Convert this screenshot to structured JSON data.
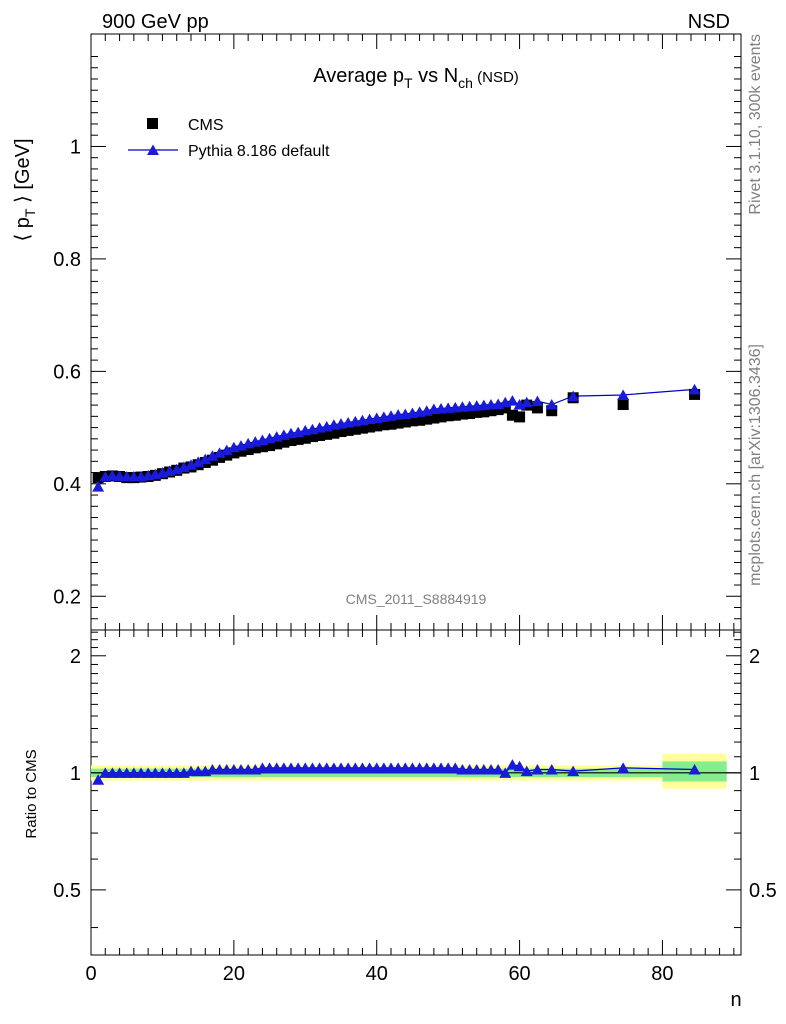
{
  "header": {
    "left": "900 GeV pp",
    "right": "NSD"
  },
  "title": {
    "main": "Average p",
    "sub1": "T",
    "mid": " vs N",
    "sub2": "ch",
    "tail": " (NSD)"
  },
  "side_labels": {
    "rivet": "Rivet 3.1.10,  300k events",
    "mcplots": "mcplots.cern.ch [arXiv:1306.3436]"
  },
  "watermark": "CMS_2011_S8884919",
  "ylabel": {
    "open": "⟨ p",
    "sub": "T",
    "close": " ⟩ [GeV]"
  },
  "xlabel": "n",
  "ratio_ylabel": "Ratio to CMS",
  "legend": {
    "data": "CMS",
    "mc": "Pythia 8.186 default"
  },
  "colors": {
    "data": "#000000",
    "mc": "#0000cc",
    "mc_marker": "#1a1adb",
    "band_inner": "#86ed8f",
    "band_outer": "#ffff9a",
    "ref_line": "#000000"
  },
  "chart_data": [
    {
      "type": "scatter",
      "panel": "main",
      "xlim": [
        0,
        91
      ],
      "ylim": [
        0.14,
        1.2
      ],
      "yticks": [
        "0.2",
        "0.4",
        "0.6",
        "0.8",
        "1"
      ],
      "series": [
        {
          "name": "CMS",
          "marker": "square",
          "x": [
            1,
            2,
            3,
            4,
            5,
            6,
            7,
            8,
            9,
            10,
            11,
            12,
            13,
            14,
            15,
            16,
            17,
            18,
            19,
            20,
            21,
            22,
            23,
            24,
            25,
            26,
            27,
            28,
            29,
            30,
            31,
            32,
            33,
            34,
            35,
            36,
            37,
            38,
            39,
            40,
            41,
            42,
            43,
            44,
            45,
            46,
            47,
            48,
            49,
            50,
            51,
            52,
            53,
            54,
            55,
            56,
            57,
            58,
            59,
            60,
            61,
            62.5,
            64.5,
            67.5,
            74.5,
            84.5
          ],
          "y": [
            0.411,
            0.413,
            0.414,
            0.413,
            0.411,
            0.411,
            0.412,
            0.413,
            0.415,
            0.418,
            0.421,
            0.424,
            0.428,
            0.43,
            0.434,
            0.438,
            0.442,
            0.447,
            0.451,
            0.455,
            0.458,
            0.461,
            0.464,
            0.466,
            0.468,
            0.471,
            0.474,
            0.477,
            0.479,
            0.481,
            0.484,
            0.486,
            0.488,
            0.49,
            0.493,
            0.495,
            0.497,
            0.499,
            0.501,
            0.503,
            0.505,
            0.506,
            0.508,
            0.51,
            0.512,
            0.513,
            0.515,
            0.517,
            0.519,
            0.521,
            0.522,
            0.524,
            0.525,
            0.527,
            0.528,
            0.53,
            0.532,
            0.535,
            0.522,
            0.519,
            0.54,
            0.535,
            0.53,
            0.553,
            0.541,
            0.559
          ]
        },
        {
          "name": "Pythia 8.186 default",
          "marker": "triangle",
          "x": [
            1,
            2,
            3,
            4,
            5,
            6,
            7,
            8,
            9,
            10,
            11,
            12,
            13,
            14,
            15,
            16,
            17,
            18,
            19,
            20,
            21,
            22,
            23,
            24,
            25,
            26,
            27,
            28,
            29,
            30,
            31,
            32,
            33,
            34,
            35,
            36,
            37,
            38,
            39,
            40,
            41,
            42,
            43,
            44,
            45,
            46,
            47,
            48,
            49,
            50,
            51,
            52,
            53,
            54,
            55,
            56,
            57,
            58,
            59,
            60,
            61,
            62.5,
            64.5,
            67.5,
            74.5,
            84.5
          ],
          "y": [
            0.395,
            0.413,
            0.415,
            0.414,
            0.413,
            0.413,
            0.413,
            0.415,
            0.417,
            0.42,
            0.423,
            0.426,
            0.43,
            0.434,
            0.439,
            0.444,
            0.45,
            0.455,
            0.46,
            0.465,
            0.468,
            0.472,
            0.475,
            0.478,
            0.481,
            0.484,
            0.487,
            0.49,
            0.492,
            0.495,
            0.497,
            0.5,
            0.502,
            0.505,
            0.507,
            0.509,
            0.511,
            0.513,
            0.515,
            0.517,
            0.519,
            0.521,
            0.523,
            0.524,
            0.526,
            0.528,
            0.53,
            0.533,
            0.534,
            0.535,
            0.536,
            0.537,
            0.538,
            0.539,
            0.54,
            0.541,
            0.542,
            0.545,
            0.548,
            0.541,
            0.545,
            0.547,
            0.541,
            0.556,
            0.558,
            0.568
          ]
        }
      ]
    },
    {
      "type": "line",
      "panel": "ratio",
      "xlim": [
        0,
        91
      ],
      "ylim": [
        0.34,
        2.33
      ],
      "xticks": [
        "0",
        "20",
        "40",
        "60",
        "80"
      ],
      "yticks": [
        "0.5",
        "1",
        "2"
      ],
      "yscale": "log",
      "reference": 1,
      "series": [
        {
          "name": "Pythia 8.186 default",
          "marker": "triangle",
          "x": [
            1,
            2,
            3,
            4,
            5,
            6,
            7,
            8,
            9,
            10,
            11,
            12,
            13,
            14,
            15,
            16,
            17,
            18,
            19,
            20,
            21,
            22,
            23,
            24,
            25,
            26,
            27,
            28,
            29,
            30,
            31,
            32,
            33,
            34,
            35,
            36,
            37,
            38,
            39,
            40,
            41,
            42,
            43,
            44,
            45,
            46,
            47,
            48,
            49,
            50,
            51,
            52,
            53,
            54,
            55,
            56,
            57,
            58,
            59,
            60,
            61,
            62.5,
            64.5,
            67.5,
            74.5,
            84.5
          ],
          "y": [
            0.96,
            1.0,
            1.0,
            1.0,
            1.0,
            1.0,
            1.0,
            1.0,
            1.0,
            1.0,
            1.0,
            1.0,
            1.0,
            1.01,
            1.01,
            1.01,
            1.02,
            1.02,
            1.02,
            1.02,
            1.02,
            1.02,
            1.02,
            1.03,
            1.03,
            1.03,
            1.03,
            1.03,
            1.03,
            1.03,
            1.03,
            1.03,
            1.03,
            1.03,
            1.03,
            1.03,
            1.03,
            1.03,
            1.03,
            1.03,
            1.03,
            1.03,
            1.03,
            1.03,
            1.03,
            1.03,
            1.03,
            1.03,
            1.03,
            1.03,
            1.03,
            1.02,
            1.02,
            1.02,
            1.02,
            1.02,
            1.02,
            1.0,
            1.05,
            1.04,
            1.01,
            1.02,
            1.02,
            1.01,
            1.03,
            1.02
          ]
        }
      ],
      "band_inner": [
        {
          "x0": 0,
          "x1": 80,
          "lo": 0.975,
          "hi": 1.025
        },
        {
          "x0": 80,
          "x1": 89,
          "lo": 0.95,
          "hi": 1.07
        }
      ],
      "band_outer": [
        {
          "x0": 0,
          "x1": 80,
          "lo": 0.955,
          "hi": 1.045
        },
        {
          "x0": 80,
          "x1": 89,
          "lo": 0.91,
          "hi": 1.12
        }
      ]
    }
  ]
}
